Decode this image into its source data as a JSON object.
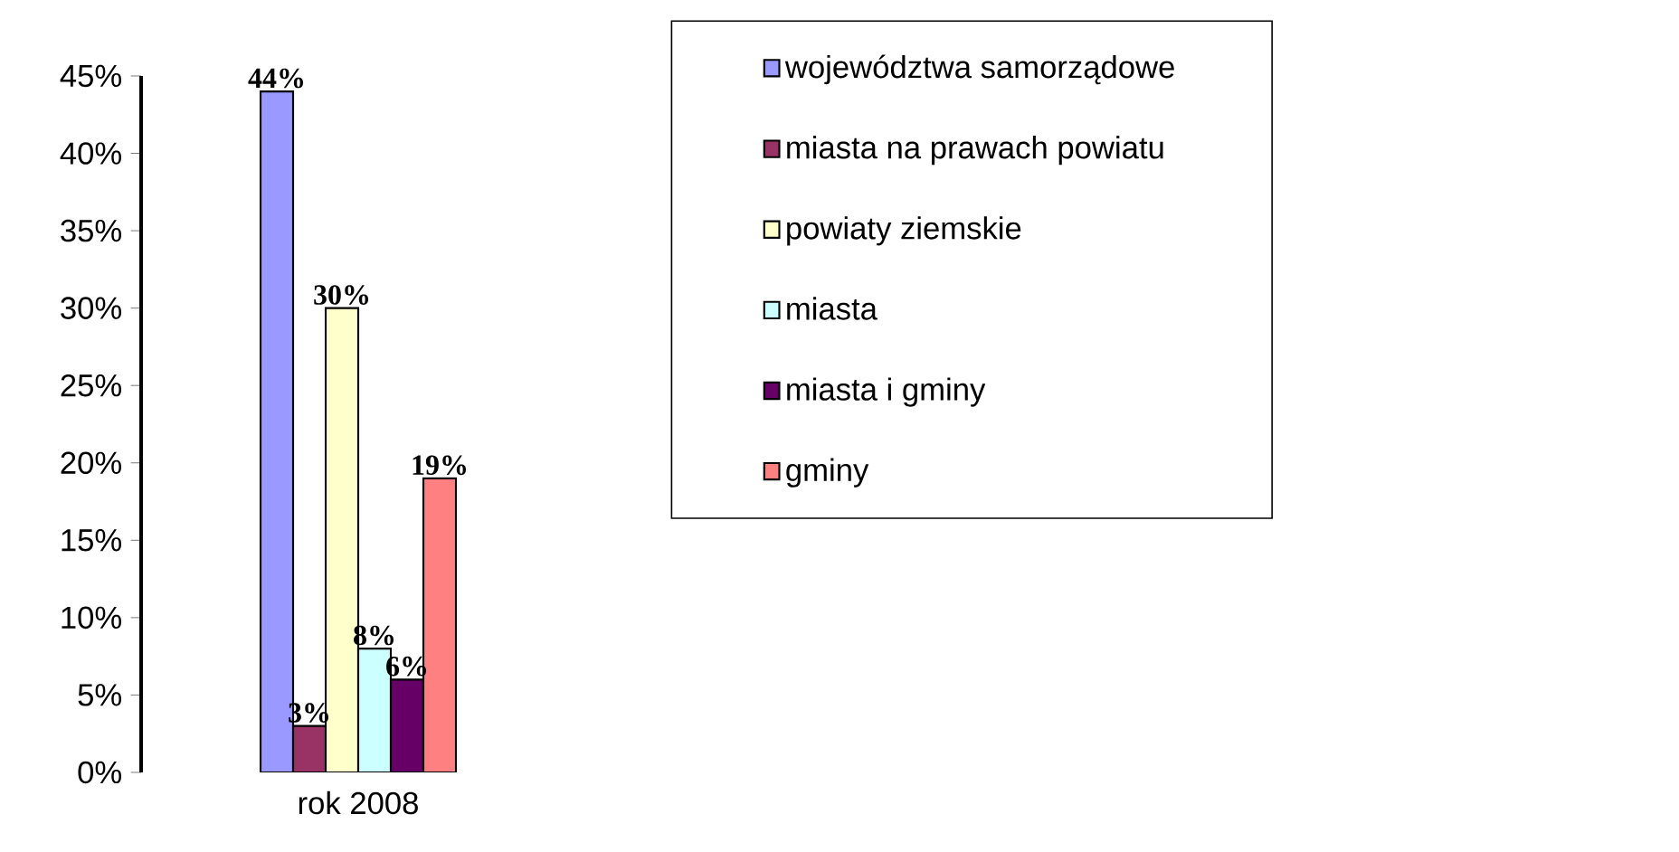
{
  "chart_data": {
    "type": "bar",
    "categories": [
      "rok 2008"
    ],
    "series": [
      {
        "name": "województwa samorządowe",
        "color": "#9999ff",
        "values": [
          44
        ],
        "value_labels": [
          "44%"
        ]
      },
      {
        "name": "miasta na prawach powiatu",
        "color": "#993366",
        "values": [
          3
        ],
        "value_labels": [
          "3%"
        ]
      },
      {
        "name": "powiaty ziemskie",
        "color": "#ffffcc",
        "values": [
          30
        ],
        "value_labels": [
          "30%"
        ]
      },
      {
        "name": "miasta",
        "color": "#ccffff",
        "values": [
          8
        ],
        "value_labels": [
          "8%"
        ]
      },
      {
        "name": "miasta i gminy",
        "color": "#660066",
        "values": [
          6
        ],
        "value_labels": [
          "6%"
        ]
      },
      {
        "name": "gminy",
        "color": "#ff8080",
        "values": [
          19
        ],
        "value_labels": [
          "19%"
        ]
      }
    ],
    "ylim": [
      0,
      45
    ],
    "yticks": [
      {
        "value": 0,
        "label": "0%"
      },
      {
        "value": 5,
        "label": "5%"
      },
      {
        "value": 10,
        "label": "10%"
      },
      {
        "value": 15,
        "label": "15%"
      },
      {
        "value": 20,
        "label": "20%"
      },
      {
        "value": 25,
        "label": "25%"
      },
      {
        "value": 30,
        "label": "30%"
      },
      {
        "value": 35,
        "label": "35%"
      },
      {
        "value": 40,
        "label": "40%"
      },
      {
        "value": 45,
        "label": "45%"
      }
    ],
    "legend": "right",
    "grid": false
  }
}
